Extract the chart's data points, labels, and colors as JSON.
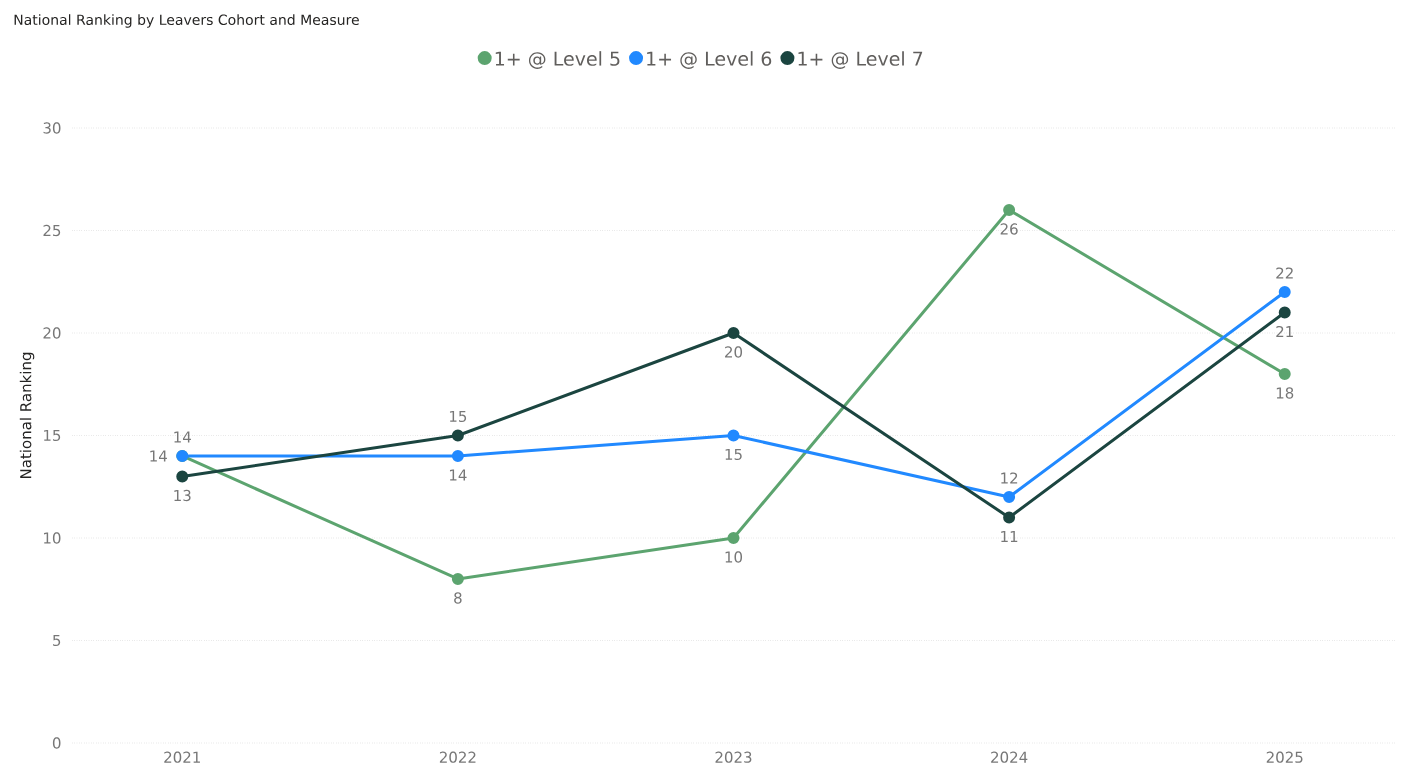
{
  "chart_data": {
    "type": "line",
    "title": "National Ranking by Leavers Cohort and Measure",
    "ylabel": "National Ranking",
    "categories": [
      "2021",
      "2022",
      "2023",
      "2024",
      "2025"
    ],
    "series": [
      {
        "name": "1+ @ Level 5",
        "color": "#5ca46f",
        "values": [
          14,
          8,
          10,
          26,
          18
        ]
      },
      {
        "name": "1+ @ Level 6",
        "color": "#2189ff",
        "values": [
          14,
          14,
          15,
          12,
          22
        ]
      },
      {
        "name": "1+ @ Level 7",
        "color": "#1b4540",
        "values": [
          13,
          15,
          20,
          11,
          21
        ]
      }
    ],
    "ylim": [
      0,
      30
    ],
    "yticks": [
      0,
      5,
      10,
      15,
      20,
      25,
      30
    ],
    "grid": "y",
    "legend": "top",
    "marker": "circle",
    "line_style": "solid",
    "data_labels": true
  }
}
